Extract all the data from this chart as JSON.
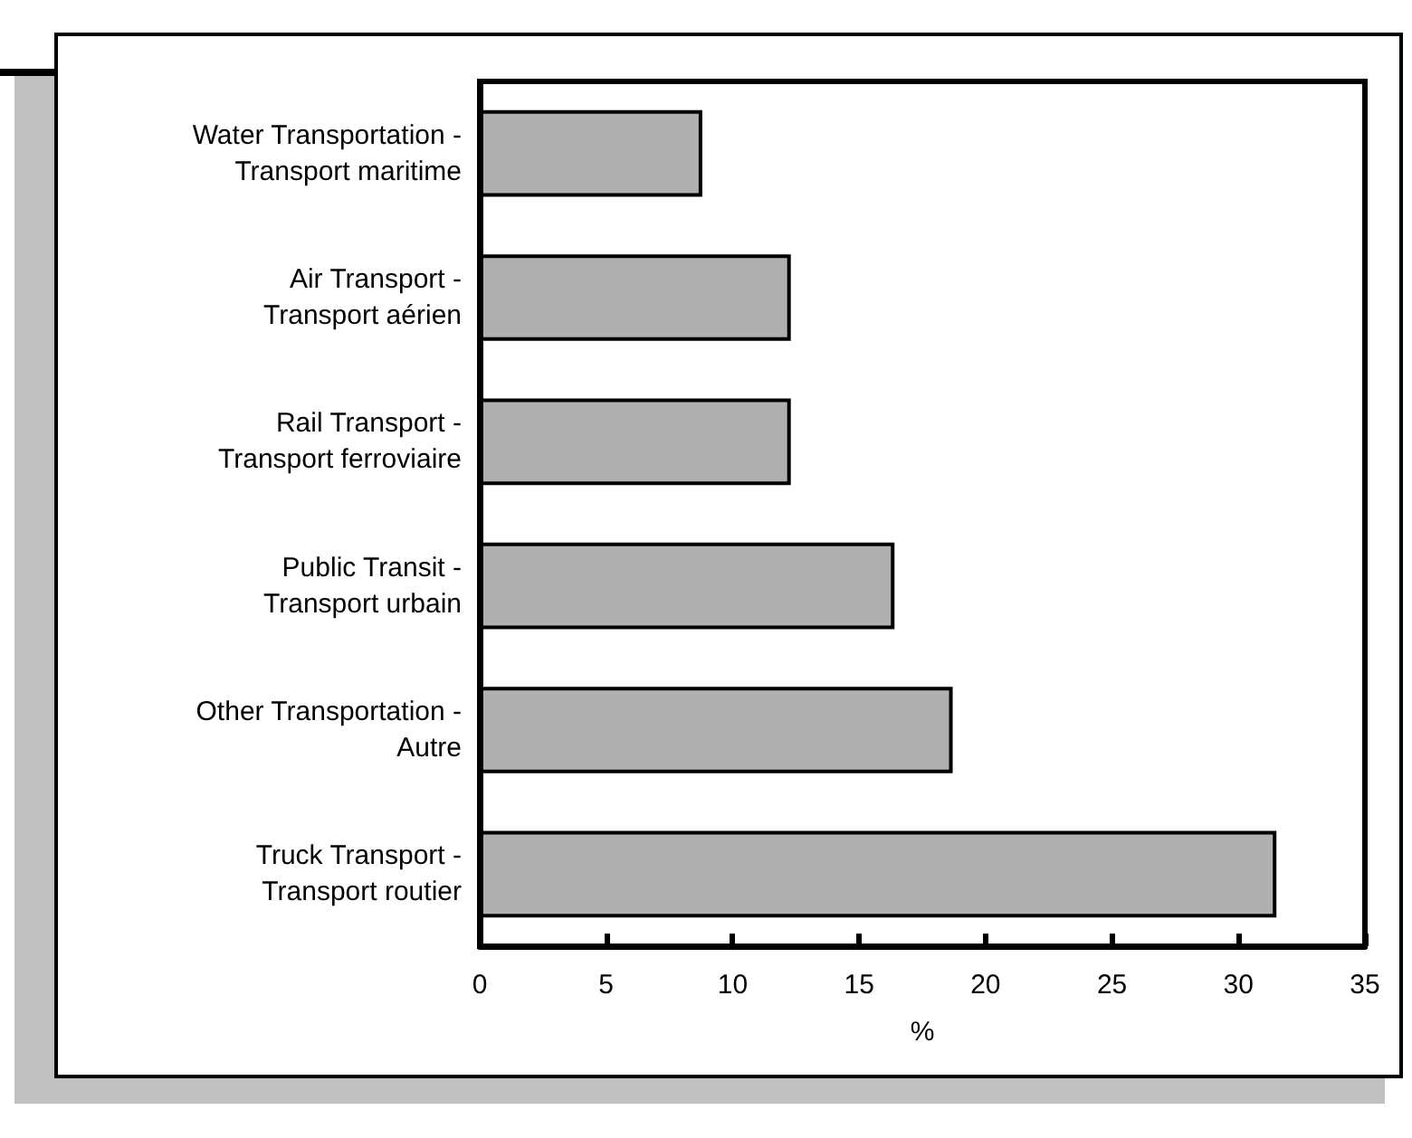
{
  "chart_data": {
    "type": "bar",
    "orientation": "horizontal",
    "xlabel": "%",
    "categories": [
      "Water Transportation -\nTransport maritime",
      "Air Transport -\nTransport aérien",
      "Rail Transport -\nTransport ferroviaire",
      "Public Transit -\nTransport urbain",
      "Other Transportation -\nAutre",
      "Truck Transport -\nTransport routier"
    ],
    "values": [
      8.8,
      12.3,
      12.3,
      16.4,
      18.7,
      31.5
    ],
    "color": "#b0b0b0",
    "xlim": [
      0,
      35
    ],
    "xticks": [
      0,
      5,
      10,
      15,
      20,
      25,
      30,
      35
    ],
    "grid": false
  }
}
